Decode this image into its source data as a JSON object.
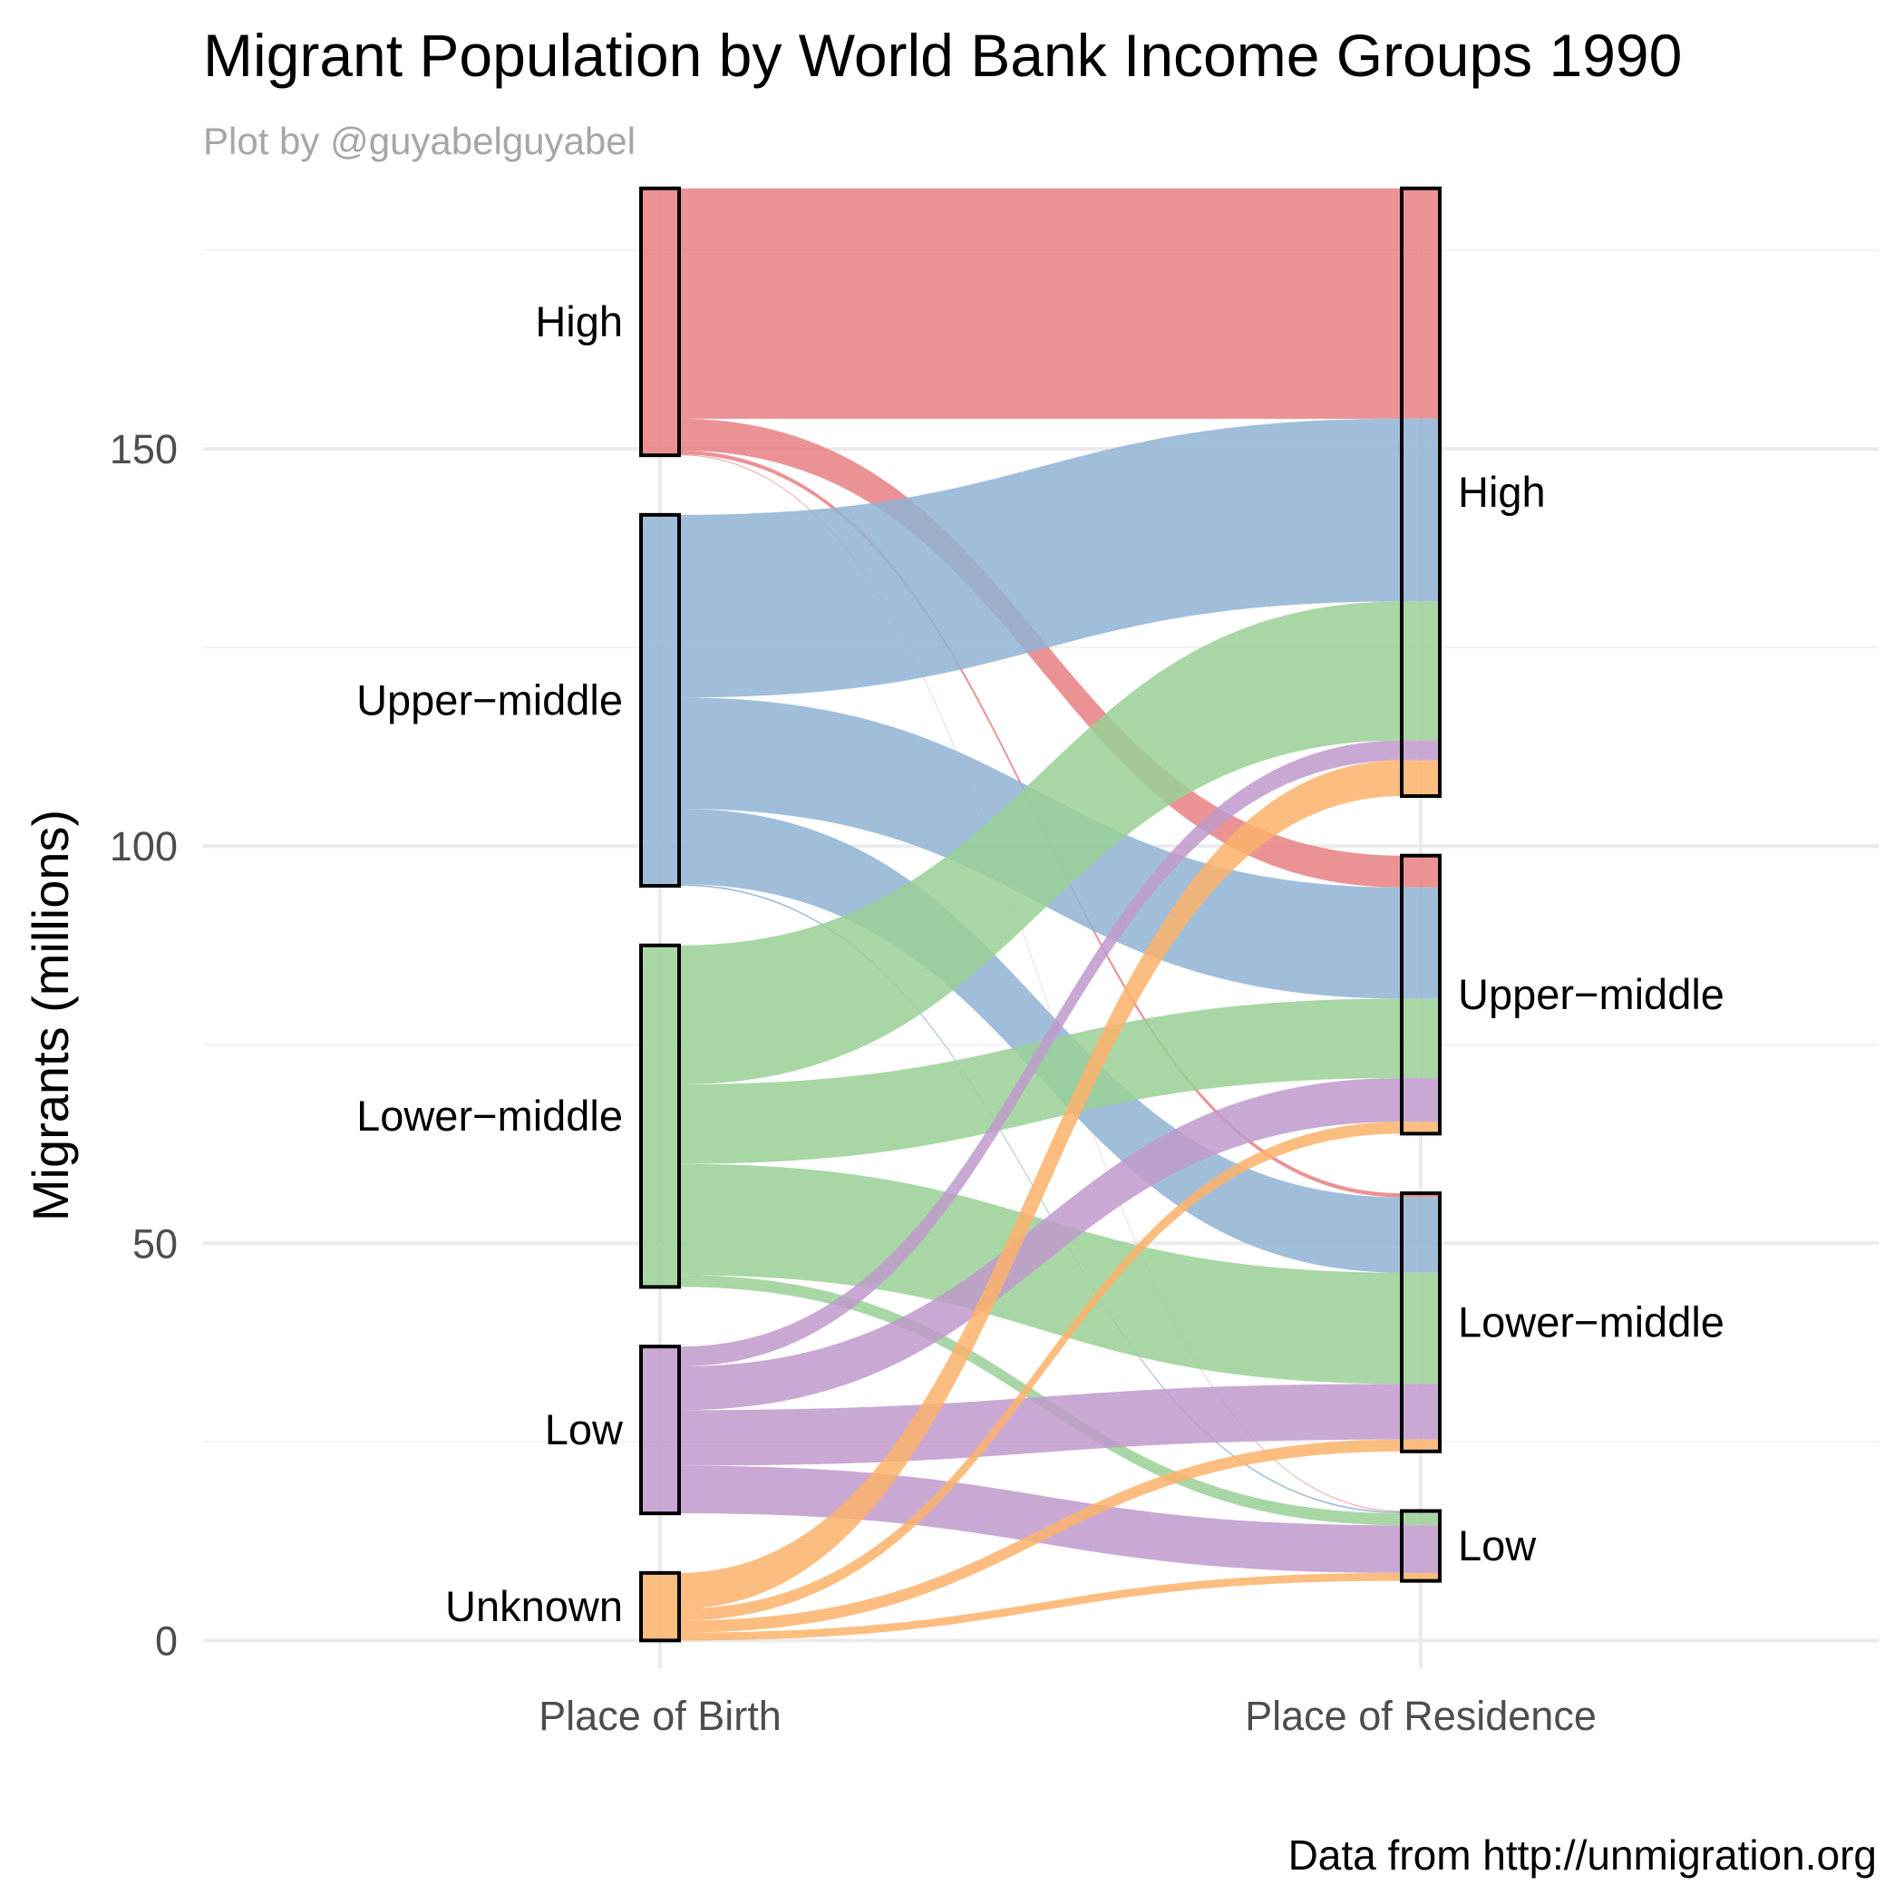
{
  "chart_data": {
    "type": "alluvial",
    "title": "Migrant Population by World Bank Income Groups 1990",
    "subtitle": "Plot by @guyabelguyabel",
    "caption": "Data from http://unmigration.org",
    "ylabel": "Migrants (millions)",
    "ylim": [
      -3.5,
      183
    ],
    "yticks": [
      0,
      50,
      100,
      150
    ],
    "axes": [
      "Place of Birth",
      "Place of Residence"
    ],
    "groups": [
      "High",
      "Upper−middle",
      "Lower−middle",
      "Low",
      "Unknown"
    ],
    "colors": {
      "High": "#e87f81",
      "Upper−middle": "#8fb3d3",
      "Lower−middle": "#99d095",
      "Low": "#c09acb",
      "Unknown": "#fbb16a"
    },
    "flows": [
      {
        "from": "High",
        "to": "High",
        "value": 29.0
      },
      {
        "from": "High",
        "to": "Upper−middle",
        "value": 4.0
      },
      {
        "from": "High",
        "to": "Lower−middle",
        "value": 0.5
      },
      {
        "from": "High",
        "to": "Low",
        "value": 0.1
      },
      {
        "from": "Upper−middle",
        "to": "High",
        "value": 23.0
      },
      {
        "from": "Upper−middle",
        "to": "Upper−middle",
        "value": 14.0
      },
      {
        "from": "Upper−middle",
        "to": "Lower−middle",
        "value": 9.5
      },
      {
        "from": "Upper−middle",
        "to": "Low",
        "value": 0.2
      },
      {
        "from": "Lower−middle",
        "to": "High",
        "value": 17.5
      },
      {
        "from": "Lower−middle",
        "to": "Upper−middle",
        "value": 10.0
      },
      {
        "from": "Lower−middle",
        "to": "Lower−middle",
        "value": 14.0
      },
      {
        "from": "Lower−middle",
        "to": "Low",
        "value": 1.5
      },
      {
        "from": "Low",
        "to": "High",
        "value": 2.5
      },
      {
        "from": "Low",
        "to": "Upper−middle",
        "value": 5.5
      },
      {
        "from": "Low",
        "to": "Lower−middle",
        "value": 7.0
      },
      {
        "from": "Low",
        "to": "Low",
        "value": 6.0
      },
      {
        "from": "Unknown",
        "to": "High",
        "value": 4.5
      },
      {
        "from": "Unknown",
        "to": "Upper−middle",
        "value": 1.5
      },
      {
        "from": "Unknown",
        "to": "Lower−middle",
        "value": 1.5
      },
      {
        "from": "Unknown",
        "to": "Low",
        "value": 1.0
      }
    ]
  }
}
